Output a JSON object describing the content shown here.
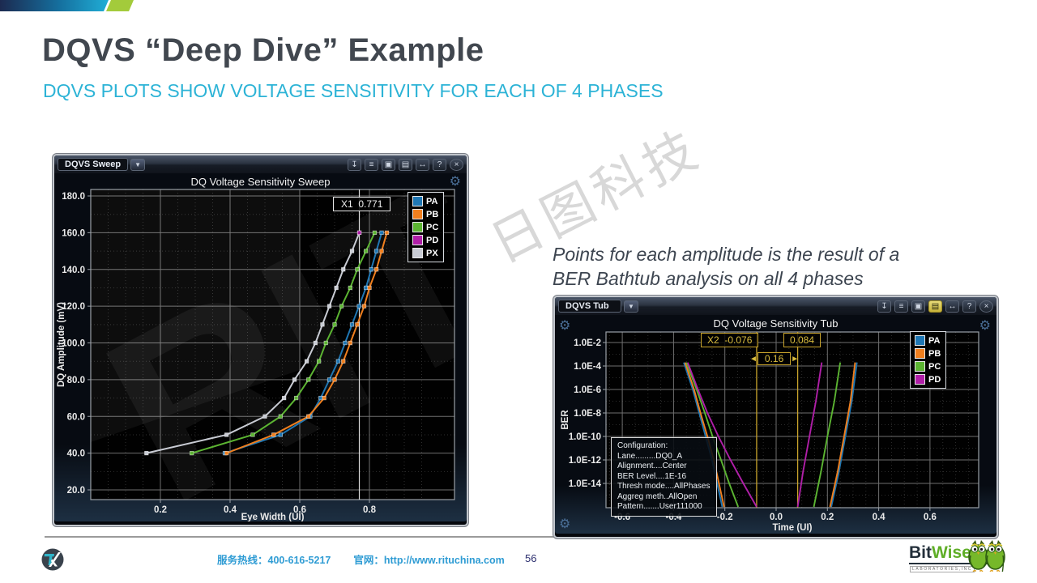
{
  "slide": {
    "title": "DQVS “Deep Dive” Example",
    "subtitle": "DQVS PLOTS SHOW VOLTAGE SENSITIVITY FOR EACH OF 4 PHASES",
    "note": {
      "line1": "Points for each amplitude is the result of a",
      "line2": "BER Bathtub analysis on all 4 phases"
    },
    "watermark_cn": "日图科技",
    "watermark_rit": "RIT",
    "page_number": "56"
  },
  "footer": {
    "hotline": "服务热线：400-616-5217",
    "website": "官网：http://www.rituchina.com",
    "bitwise": {
      "bit": "Bit",
      "wise": "Wise",
      "sub": "LABORATORIES,INC"
    }
  },
  "windows": {
    "sweep": {
      "titlebar": "DQVS Sweep",
      "title": "DQ Voltage Sensitivity Sweep",
      "cursor_label": "X1  0.771",
      "dropdown_glyph": "▼",
      "toolbar": [
        "download-icon",
        "layers-icon",
        "image-icon",
        "print-icon",
        "resize-icon",
        "help-icon",
        "close-icon"
      ]
    },
    "tub": {
      "titlebar": "DQVS Tub",
      "title": "DQ Voltage Sensitivity Tub",
      "cursor_left_label": "X2  -0.076",
      "cursor_right_label": "0.084",
      "delta_label": "0.16",
      "dropdown_glyph": "▼",
      "toolbar": [
        "download-icon",
        "layers-icon",
        "image-icon",
        "print-icon",
        "resize-icon",
        "help-icon",
        "close-icon"
      ],
      "highlighted_tool": "print-icon",
      "config_lines": [
        "Configuration:",
        "Lane.........DQ0_A",
        "Alignment....Center",
        "BER Level....1E-16",
        "Thresh mode....AllPhases",
        "Aggreg meth..AllOpen",
        "Pattern.......User111000"
      ]
    }
  },
  "chart_data": [
    {
      "id": "sweep",
      "type": "line",
      "title": "DQ Voltage Sensitivity Sweep",
      "xlabel": "Eye Width (UI)",
      "ylabel": "DQ Amplitude (mV)",
      "xlim": [
        0.0,
        1.04
      ],
      "ylim": [
        15,
        185
      ],
      "x_ticks": [
        0.2,
        0.4,
        0.6,
        0.8
      ],
      "y_ticks": [
        20,
        40,
        60,
        80,
        100,
        120,
        140,
        160,
        180
      ],
      "grid": true,
      "legend_position": "top-right",
      "cursor_x": 0.771,
      "series": [
        {
          "name": "PA",
          "color": "#1f77b4",
          "points": [
            [
              0.385,
              40
            ],
            [
              0.545,
              50
            ],
            [
              0.63,
              60
            ],
            [
              0.66,
              70
            ],
            [
              0.685,
              80
            ],
            [
              0.71,
              90
            ],
            [
              0.73,
              100
            ],
            [
              0.75,
              110
            ],
            [
              0.77,
              120
            ],
            [
              0.79,
              130
            ],
            [
              0.805,
              140
            ],
            [
              0.82,
              150
            ],
            [
              0.835,
              160
            ]
          ]
        },
        {
          "name": "PB",
          "color": "#f07f1e",
          "points": [
            [
              0.39,
              40
            ],
            [
              0.525,
              50
            ],
            [
              0.625,
              60
            ],
            [
              0.67,
              70
            ],
            [
              0.7,
              80
            ],
            [
              0.725,
              90
            ],
            [
              0.745,
              100
            ],
            [
              0.765,
              110
            ],
            [
              0.785,
              120
            ],
            [
              0.8,
              130
            ],
            [
              0.82,
              140
            ],
            [
              0.835,
              150
            ],
            [
              0.85,
              160
            ]
          ]
        },
        {
          "name": "PC",
          "color": "#5cb532",
          "points": [
            [
              0.29,
              40
            ],
            [
              0.465,
              50
            ],
            [
              0.545,
              60
            ],
            [
              0.59,
              70
            ],
            [
              0.625,
              80
            ],
            [
              0.655,
              90
            ],
            [
              0.675,
              100
            ],
            [
              0.7,
              110
            ],
            [
              0.72,
              120
            ],
            [
              0.745,
              130
            ],
            [
              0.765,
              140
            ],
            [
              0.79,
              150
            ],
            [
              0.815,
              160
            ]
          ]
        },
        {
          "name": "PD",
          "color": "#b01fa8",
          "points": [
            [
              0.771,
              160
            ]
          ]
        },
        {
          "name": "PX",
          "color": "#c9ccd4",
          "points": [
            [
              0.16,
              40
            ],
            [
              0.39,
              50
            ],
            [
              0.5,
              60
            ],
            [
              0.555,
              70
            ],
            [
              0.585,
              80
            ],
            [
              0.62,
              90
            ],
            [
              0.645,
              100
            ],
            [
              0.665,
              110
            ],
            [
              0.685,
              120
            ],
            [
              0.705,
              130
            ],
            [
              0.725,
              140
            ],
            [
              0.75,
              150
            ],
            [
              0.771,
              160
            ]
          ]
        }
      ]
    },
    {
      "id": "tub",
      "type": "line",
      "title": "DQ Voltage Sensitivity Tub",
      "xlabel": "Time (UI)",
      "ylabel": "BER",
      "y_scale": "log",
      "xlim": [
        -0.66,
        0.79
      ],
      "x_ticks": [
        -0.6,
        -0.4,
        -0.2,
        0.0,
        0.2,
        0.4,
        0.6
      ],
      "y_tick_labels": [
        "1.0E-2",
        "1.0E-4",
        "1.0E-6",
        "1.0E-8",
        "1.0E-10",
        "1.0E-12",
        "1.0E-14"
      ],
      "y_tick_exponents": [
        -2,
        -4,
        -6,
        -8,
        -10,
        -12,
        -14
      ],
      "grid": true,
      "legend_position": "top-right",
      "cursors_x": [
        -0.076,
        0.084
      ],
      "cursor_delta": 0.16,
      "series": [
        {
          "name": "PA",
          "color": "#1f77b4",
          "branches": [
            [
              [
                -0.36,
                -3.7
              ],
              [
                -0.325,
                -6
              ],
              [
                -0.3,
                -8
              ],
              [
                -0.275,
                -10
              ],
              [
                -0.25,
                -12
              ],
              [
                -0.23,
                -14
              ],
              [
                -0.21,
                -16
              ]
            ],
            [
              [
                0.215,
                -16
              ],
              [
                0.245,
                -13
              ],
              [
                0.27,
                -10
              ],
              [
                0.295,
                -7
              ],
              [
                0.315,
                -3.7
              ]
            ]
          ]
        },
        {
          "name": "PB",
          "color": "#f07f1e",
          "branches": [
            [
              [
                -0.355,
                -3.7
              ],
              [
                -0.32,
                -6
              ],
              [
                -0.295,
                -8
              ],
              [
                -0.268,
                -10
              ],
              [
                -0.243,
                -12
              ],
              [
                -0.223,
                -14
              ],
              [
                -0.203,
                -16
              ]
            ],
            [
              [
                0.21,
                -16
              ],
              [
                0.24,
                -13
              ],
              [
                0.265,
                -10
              ],
              [
                0.29,
                -7
              ],
              [
                0.308,
                -3.7
              ]
            ]
          ]
        },
        {
          "name": "PC",
          "color": "#5cb532",
          "branches": [
            [
              [
                -0.35,
                -3.7
              ],
              [
                -0.31,
                -6
              ],
              [
                -0.278,
                -8
              ],
              [
                -0.248,
                -10
              ],
              [
                -0.215,
                -12
              ],
              [
                -0.183,
                -14
              ],
              [
                -0.148,
                -16
              ]
            ],
            [
              [
                0.147,
                -16
              ],
              [
                0.175,
                -13
              ],
              [
                0.2,
                -10
              ],
              [
                0.227,
                -7
              ],
              [
                0.25,
                -3.7
              ]
            ]
          ]
        },
        {
          "name": "PD",
          "color": "#b01fa8",
          "branches": [
            [
              [
                -0.345,
                -3.7
              ],
              [
                -0.305,
                -6
              ],
              [
                -0.268,
                -8
              ],
              [
                -0.225,
                -10
              ],
              [
                -0.178,
                -12
              ],
              [
                -0.128,
                -14
              ],
              [
                -0.076,
                -16
              ]
            ],
            [
              [
                0.084,
                -16
              ],
              [
                0.105,
                -13
              ],
              [
                0.13,
                -10
              ],
              [
                0.155,
                -7
              ],
              [
                0.178,
                -3.7
              ]
            ]
          ]
        }
      ]
    }
  ]
}
